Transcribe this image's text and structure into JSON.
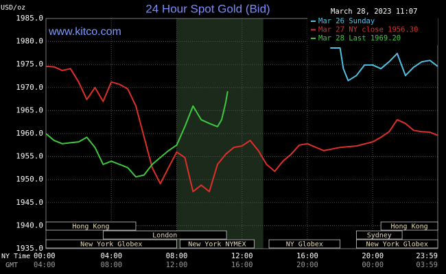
{
  "chart_data": {
    "type": "line",
    "title": "24 Hour Spot Gold (Bid)",
    "unit_label": "USD/oz",
    "timestamp": "March 28, 2023 11:07",
    "source": "www.kitco.com",
    "xlabel": "NY Time",
    "x2label": "GMT",
    "xlim": [
      0,
      23.98
    ],
    "xticks": [
      {
        "value": 0,
        "label": "00:00"
      },
      {
        "value": 4,
        "label": "04:00"
      },
      {
        "value": 8,
        "label": "08:00"
      },
      {
        "value": 12,
        "label": "12:00"
      },
      {
        "value": 16,
        "label": "16:00"
      },
      {
        "value": 20,
        "label": "20:00"
      },
      {
        "value": 23.98,
        "label": "23:59"
      }
    ],
    "x2ticks": [
      {
        "value": 0,
        "label": "04:00"
      },
      {
        "value": 4,
        "label": "08:00"
      },
      {
        "value": 8,
        "label": "12:00"
      },
      {
        "value": 12,
        "label": "16:00"
      },
      {
        "value": 16,
        "label": "20:00"
      },
      {
        "value": 20,
        "label": "00:00"
      },
      {
        "value": 23.98,
        "label": "03:59"
      }
    ],
    "ylim": [
      1935,
      1985
    ],
    "yticks": [
      {
        "value": 1935,
        "label": "1935.0"
      },
      {
        "value": 1940,
        "label": "1940.0"
      },
      {
        "value": 1945,
        "label": "1945.0"
      },
      {
        "value": 1950,
        "label": "1950.0"
      },
      {
        "value": 1955,
        "label": "1955.0"
      },
      {
        "value": 1960,
        "label": "1960.0"
      },
      {
        "value": 1965,
        "label": "1965.0"
      },
      {
        "value": 1970,
        "label": "1970.0"
      },
      {
        "value": 1975,
        "label": "1975.0"
      },
      {
        "value": 1980,
        "label": "1980.0"
      },
      {
        "value": 1985,
        "label": "1985.0"
      }
    ],
    "grid": true,
    "shaded_xrange": [
      8,
      13.3
    ],
    "series": [
      {
        "name": "Mar 26 Sunday",
        "color": "#4fc3e8",
        "x": [
          17.4,
          18.0,
          18.2,
          18.5,
          19.0,
          19.5,
          20.0,
          20.5,
          21.0,
          21.5,
          22.0,
          22.5,
          23.0,
          23.5,
          23.98
        ],
        "values": [
          1978.6,
          1978.6,
          1974.1,
          1971.5,
          1972.6,
          1974.9,
          1974.9,
          1974.1,
          1975.6,
          1977.4,
          1972.6,
          1974.4,
          1975.6,
          1975.9,
          1974.6
        ]
      },
      {
        "name": "Mar 27 NY close 1956.30",
        "color": "#e0302a",
        "x": [
          0,
          0.5,
          1,
          1.5,
          2,
          2.5,
          3,
          3.5,
          4,
          4.5,
          5,
          5.5,
          6,
          6.5,
          7,
          7.5,
          8,
          8.5,
          9,
          9.5,
          10,
          10.5,
          11,
          11.5,
          12,
          12.5,
          13,
          13.5,
          14,
          14.5,
          15,
          15.5,
          16,
          17,
          18,
          19,
          20,
          20.5,
          21,
          21.5,
          22,
          22.5,
          23,
          23.5,
          23.98
        ],
        "values": [
          1974.6,
          1974.5,
          1973.7,
          1974.1,
          1971.2,
          1967.4,
          1970.0,
          1967.0,
          1971.2,
          1970.7,
          1969.7,
          1966.0,
          1959.3,
          1952.6,
          1949.1,
          1952.6,
          1956.0,
          1954.8,
          1947.4,
          1948.8,
          1947.4,
          1953.3,
          1955.5,
          1957.0,
          1957.3,
          1958.5,
          1956.3,
          1953.3,
          1951.8,
          1954.0,
          1955.5,
          1957.5,
          1957.8,
          1956.3,
          1957.0,
          1957.3,
          1958.2,
          1959.2,
          1960.4,
          1963.0,
          1962.2,
          1960.7,
          1960.4,
          1960.3,
          1959.6
        ]
      },
      {
        "name": "Mar 28 Last 1969.20",
        "color": "#3dcc3d",
        "x": [
          0,
          0.5,
          1,
          1.5,
          2,
          2.5,
          3,
          3.5,
          4,
          4.5,
          5,
          5.5,
          6,
          6.5,
          7,
          7.5,
          8,
          8.5,
          9,
          9.5,
          10,
          10.5,
          10.75,
          11,
          11.12
        ],
        "values": [
          1960.0,
          1958.5,
          1957.8,
          1958.0,
          1958.2,
          1959.2,
          1957.0,
          1953.3,
          1954.0,
          1953.3,
          1952.6,
          1950.6,
          1951.0,
          1953.3,
          1954.8,
          1956.3,
          1957.5,
          1961.5,
          1966.0,
          1963.0,
          1962.2,
          1961.5,
          1963.0,
          1966.7,
          1969.2
        ]
      }
    ],
    "markets": [
      {
        "name": "Hong Kong",
        "start": 0,
        "end": 5.5
      },
      {
        "name": "London",
        "start": 3.5,
        "end": 11.05
      },
      {
        "name": "New York Globex",
        "start": 0,
        "end": 8
      },
      {
        "name": "New York NYMEX",
        "start": 8.2,
        "end": 12.75
      },
      {
        "name": "NY Globex",
        "start": 13.65,
        "end": 18
      },
      {
        "name": "Sydney",
        "start": 19,
        "end": 21.8
      },
      {
        "name": "Hong Kong",
        "start": 20.5,
        "end": 23.98
      },
      {
        "name": "New York Globex",
        "start": 19,
        "end": 23.98
      }
    ]
  }
}
